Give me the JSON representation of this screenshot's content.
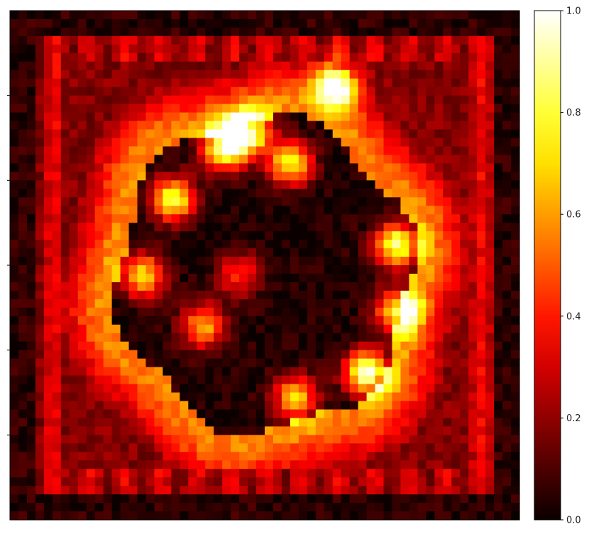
{
  "chart_data": {
    "type": "heatmap",
    "title": "",
    "xlabel": "",
    "ylabel": "",
    "colormap": "hot",
    "colormap_stops": [
      "#000000",
      "#ff0000",
      "#ffff00",
      "#ffffff"
    ],
    "value_range": [
      0.0,
      1.0
    ],
    "colorbar": {
      "ticks": [
        0.0,
        0.2,
        0.4,
        0.6,
        0.8,
        1.0
      ],
      "tick_labels": [
        "0.0",
        "0.2",
        "0.4",
        "0.6",
        "0.8",
        "1.0"
      ]
    },
    "y_tick_labels": [
      "",
      "",
      "",
      "",
      ""
    ],
    "x_tick_labels": [],
    "features": {
      "background_level": 0.06,
      "border_band_level": 0.3,
      "ring_level": 0.55,
      "interior_level": 0.03,
      "hotspots": [
        {
          "u": 0.42,
          "v": 0.27,
          "level": 0.9
        },
        {
          "u": 0.47,
          "v": 0.24,
          "level": 0.85
        },
        {
          "u": 0.55,
          "v": 0.3,
          "level": 0.75
        },
        {
          "u": 0.32,
          "v": 0.37,
          "level": 0.8
        },
        {
          "u": 0.26,
          "v": 0.52,
          "level": 0.7
        },
        {
          "u": 0.38,
          "v": 0.62,
          "level": 0.6
        },
        {
          "u": 0.7,
          "v": 0.71,
          "level": 0.95
        },
        {
          "u": 0.76,
          "v": 0.59,
          "level": 0.75
        },
        {
          "u": 0.76,
          "v": 0.46,
          "level": 0.85
        },
        {
          "u": 0.64,
          "v": 0.15,
          "level": 0.8
        },
        {
          "u": 0.56,
          "v": 0.76,
          "level": 0.65
        },
        {
          "u": 0.45,
          "v": 0.52,
          "level": 0.4
        }
      ]
    }
  }
}
